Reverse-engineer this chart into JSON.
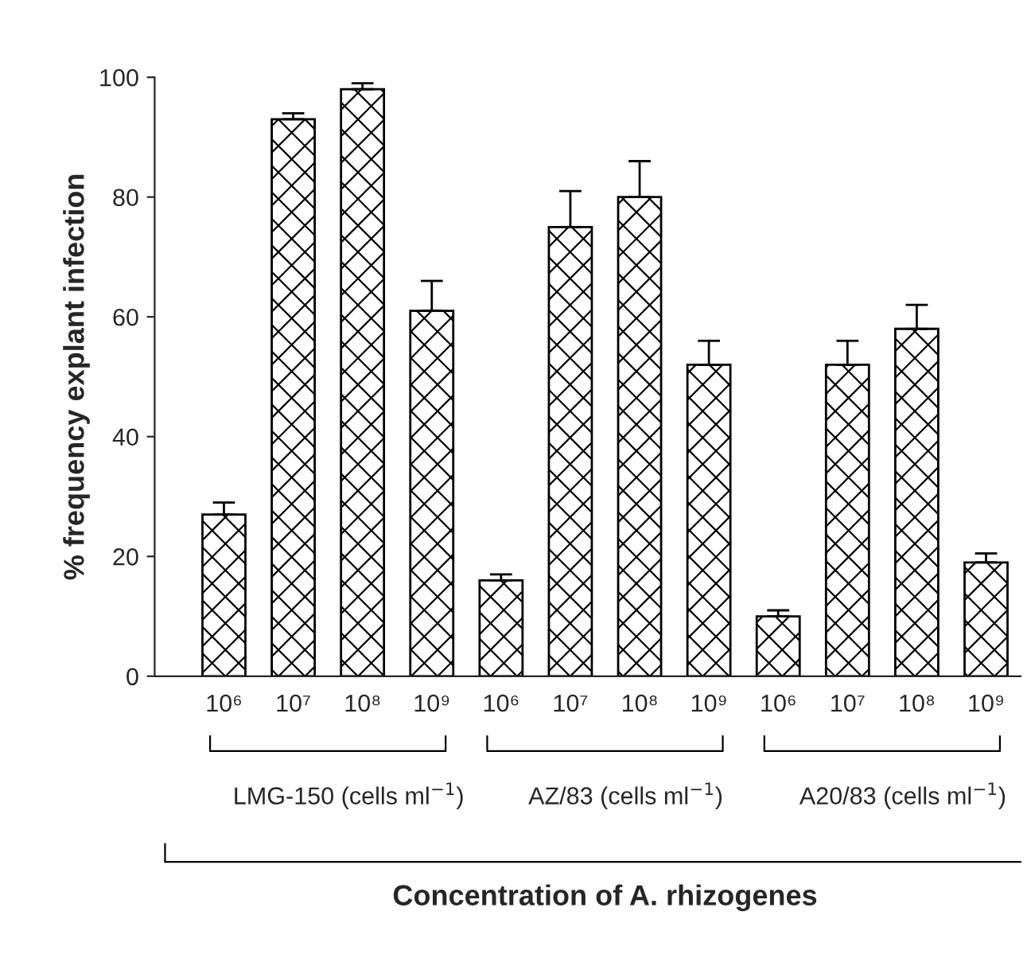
{
  "chart_data": {
    "type": "bar",
    "ylabel": "% frequency explant infection",
    "categories": [
      "10⁶",
      "10⁷",
      "10⁸",
      "10⁹",
      "10⁶",
      "10⁷",
      "10⁸",
      "10⁹",
      "10⁶",
      "10⁷",
      "10⁸",
      "10⁹"
    ],
    "values": [
      27,
      93,
      98,
      61,
      16,
      75,
      80,
      52,
      10,
      52,
      58,
      19
    ],
    "errors": [
      [
        27,
        29
      ],
      [
        93,
        94
      ],
      [
        98,
        99
      ],
      [
        61,
        66
      ],
      [
        16,
        17
      ],
      [
        75,
        81
      ],
      [
        80,
        86
      ],
      [
        52,
        56
      ],
      [
        10,
        11
      ],
      [
        52,
        56
      ],
      [
        58,
        62
      ],
      [
        19,
        20.5
      ]
    ],
    "color": "#000000",
    "annotations": [
      "LMG-150 (cells ml$^{−1}$)",
      "AZ/83 (cells ml$^{−1}$)",
      "A20/83 (cells ml$^{−1}$)",
      "Concentration of A. rhizogenes"
    ],
    "ylim": [
      0,
      100
    ],
    "yticks": [
      0,
      20,
      40,
      60,
      80,
      100
    ],
    "grid": false,
    "legend": false
  }
}
